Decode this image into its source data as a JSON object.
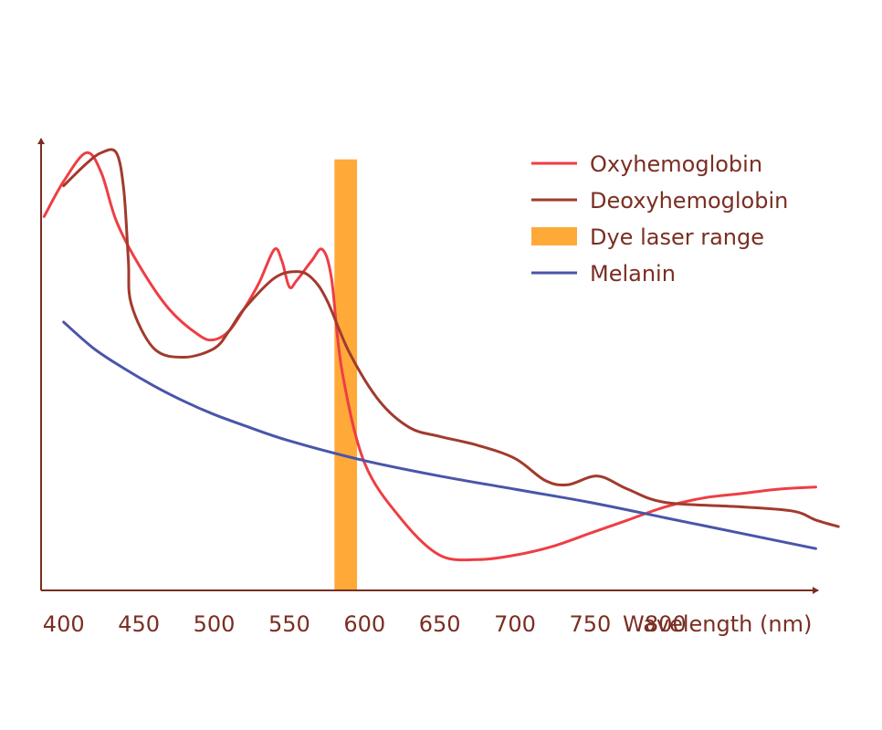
{
  "chart_data": {
    "type": "line",
    "title": "",
    "xlabel": "Wavelength (nm)",
    "ylabel": "",
    "xlim": [
      385,
      910
    ],
    "ylim": [
      0,
      100
    ],
    "x_ticks": [
      "400",
      "450",
      "500",
      "550",
      "600",
      "650",
      "700",
      "750",
      "800"
    ],
    "grid": false,
    "legend_position": "top-right",
    "band": {
      "name": "Dye laser range",
      "x_start": 580,
      "x_end": 595,
      "y_top": 98,
      "color": "#ffa939"
    },
    "series": [
      {
        "name": "Oxyhemoglobin",
        "color": "#ee3e44",
        "points": [
          [
            387,
            85
          ],
          [
            400,
            93
          ],
          [
            415,
            99.5
          ],
          [
            425,
            95
          ],
          [
            435,
            84
          ],
          [
            450,
            74
          ],
          [
            470,
            64
          ],
          [
            490,
            58
          ],
          [
            500,
            57
          ],
          [
            510,
            59
          ],
          [
            520,
            64
          ],
          [
            530,
            70
          ],
          [
            540,
            77.5
          ],
          [
            545,
            75
          ],
          [
            550,
            69
          ],
          [
            555,
            70.5
          ],
          [
            565,
            75
          ],
          [
            572,
            77.5
          ],
          [
            578,
            71
          ],
          [
            585,
            50
          ],
          [
            600,
            29
          ],
          [
            625,
            16
          ],
          [
            650,
            8
          ],
          [
            675,
            7
          ],
          [
            700,
            8
          ],
          [
            725,
            10
          ],
          [
            750,
            13
          ],
          [
            775,
            16
          ],
          [
            800,
            19
          ],
          [
            825,
            21
          ],
          [
            850,
            22
          ],
          [
            875,
            23
          ],
          [
            900,
            23.5
          ]
        ]
      },
      {
        "name": "Deoxyhemoglobin",
        "color": "#a23a2d",
        "points": [
          [
            400,
            92
          ],
          [
            415,
            97
          ],
          [
            425,
            99.5
          ],
          [
            435,
            99.5
          ],
          [
            440,
            91
          ],
          [
            443,
            75
          ],
          [
            445,
            65
          ],
          [
            460,
            55
          ],
          [
            480,
            53
          ],
          [
            500,
            55
          ],
          [
            510,
            59
          ],
          [
            520,
            64
          ],
          [
            540,
            71
          ],
          [
            555,
            72.5
          ],
          [
            565,
            71
          ],
          [
            575,
            66
          ],
          [
            590,
            54
          ],
          [
            610,
            43
          ],
          [
            630,
            37
          ],
          [
            650,
            35
          ],
          [
            675,
            33
          ],
          [
            700,
            30
          ],
          [
            720,
            25
          ],
          [
            735,
            24
          ],
          [
            755,
            26
          ],
          [
            775,
            23
          ],
          [
            800,
            20
          ],
          [
            850,
            19
          ],
          [
            885,
            18
          ],
          [
            900,
            16
          ],
          [
            915,
            14.5
          ]
        ]
      },
      {
        "name": "Melanin",
        "color": "#4a55a8",
        "points": [
          [
            400,
            61
          ],
          [
            420,
            55
          ],
          [
            440,
            50.5
          ],
          [
            460,
            46.5
          ],
          [
            480,
            43
          ],
          [
            500,
            40
          ],
          [
            520,
            37.5
          ],
          [
            550,
            34
          ],
          [
            600,
            29.5
          ],
          [
            650,
            26
          ],
          [
            700,
            23
          ],
          [
            750,
            20
          ],
          [
            800,
            16.5
          ],
          [
            850,
            13
          ],
          [
            900,
            9.5
          ]
        ]
      }
    ]
  }
}
